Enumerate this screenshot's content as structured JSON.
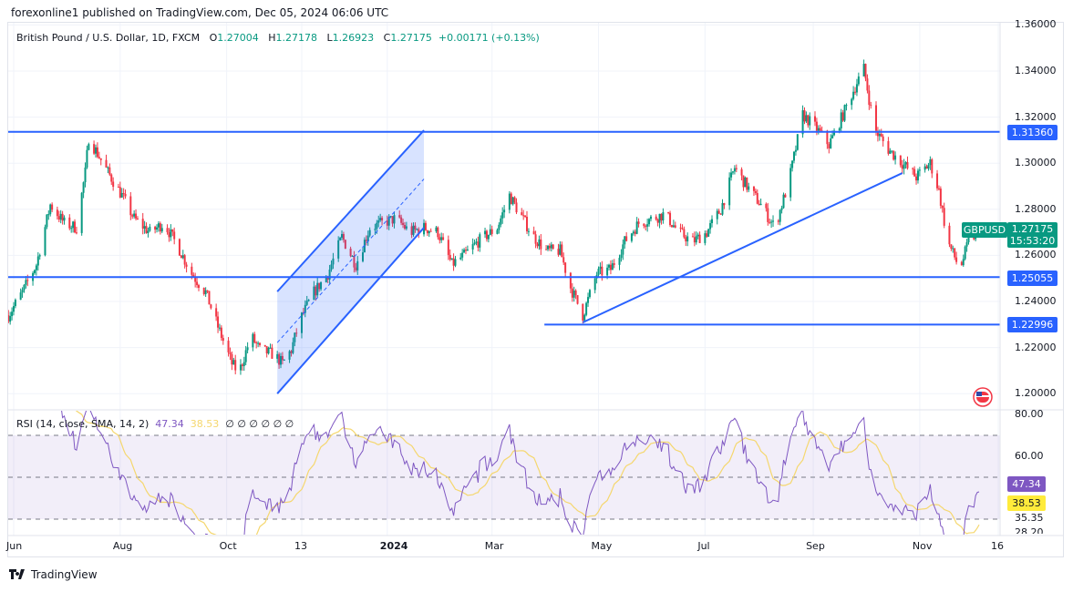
{
  "header": {
    "published": "forexonline1 published on TradingView.com, Dec 05, 2024 06:06 UTC",
    "symbol_desc": "British Pound / U.S. Dollar, 1D, FXCM",
    "open_label": "O",
    "open": "1.27004",
    "high_label": "H",
    "high": "1.27178",
    "low_label": "L",
    "low": "1.26923",
    "close_label": "C",
    "close": "1.27175",
    "change": "+0.00171 (+0.13%)"
  },
  "rsi_legend": {
    "title": "RSI (14, close, SMA, 14, 2)",
    "rsi": "47.34",
    "sma": "38.53",
    "empty_values": "∅  ∅  ∅  ∅  ∅  ∅"
  },
  "tags": {
    "symbol": "GBPUSD",
    "last_price": "1.27175",
    "countdown": "15:53:20",
    "level_top": "1.31360",
    "level_mid": "1.25055",
    "level_low": "1.22996",
    "rsi_value": "47.34",
    "rsi_sma": "38.53",
    "rsi_extra_low": "35.35",
    "rsi_cut": "28.20"
  },
  "footer": {
    "brand": "TradingView"
  },
  "icons": {
    "flag": "us-uk-flag-icon",
    "logo": "tradingview-logo-icon"
  },
  "colors": {
    "up": "#089981",
    "down": "#f23645",
    "drawing": "#2962ff",
    "rsi": "#7e57c2",
    "rsi_sma": "#f5d76e",
    "band": "#7e57c2"
  },
  "chart_data": [
    {
      "type": "candlestick",
      "title": "British Pound / U.S. Dollar, 1D, FXCM",
      "ylim": [
        1.195,
        1.362
      ],
      "y_ticks": [
        "1.36000",
        "1.34000",
        "1.32000",
        "1.30000",
        "1.28000",
        "1.26000",
        "1.24000",
        "1.22000",
        "1.20000"
      ],
      "x_ticks": [
        {
          "label": "Jun",
          "date": "2023-06-01"
        },
        {
          "label": "Aug",
          "date": "2023-08-01"
        },
        {
          "label": "Oct",
          "date": "2023-10-01"
        },
        {
          "label": "13",
          "date": "2023-11-13"
        },
        {
          "label": "2024",
          "date": "2024-01-01"
        },
        {
          "label": "Mar",
          "date": "2024-03-01"
        },
        {
          "label": "May",
          "date": "2024-05-01"
        },
        {
          "label": "Jul",
          "date": "2024-07-01"
        },
        {
          "label": "Sep",
          "date": "2024-09-01"
        },
        {
          "label": "Nov",
          "date": "2024-11-01"
        },
        {
          "label": "16",
          "date": "2024-12-16"
        }
      ],
      "approx_closes": [
        [
          "2023-05-29",
          1.234
        ],
        [
          "2023-06-06",
          1.244
        ],
        [
          "2023-06-14",
          1.256
        ],
        [
          "2023-06-22",
          1.282
        ],
        [
          "2023-06-30",
          1.274
        ],
        [
          "2023-07-07",
          1.272
        ],
        [
          "2023-07-12",
          1.296
        ],
        [
          "2023-07-14",
          1.311
        ],
        [
          "2023-07-25",
          1.296
        ],
        [
          "2023-08-02",
          1.286
        ],
        [
          "2023-08-09",
          1.276
        ],
        [
          "2023-08-18",
          1.27
        ],
        [
          "2023-08-26",
          1.274
        ],
        [
          "2023-09-03",
          1.264
        ],
        [
          "2023-09-11",
          1.252
        ],
        [
          "2023-09-19",
          1.244
        ],
        [
          "2023-09-26",
          1.229
        ],
        [
          "2023-10-04",
          1.213
        ],
        [
          "2023-10-08",
          1.209
        ],
        [
          "2023-10-15",
          1.225
        ],
        [
          "2023-10-20",
          1.219
        ],
        [
          "2023-10-28",
          1.217
        ],
        [
          "2023-11-02",
          1.213
        ],
        [
          "2023-11-07",
          1.219
        ],
        [
          "2023-11-12",
          1.232
        ],
        [
          "2023-11-20",
          1.244
        ],
        [
          "2023-11-28",
          1.252
        ],
        [
          "2023-12-06",
          1.268
        ],
        [
          "2023-12-14",
          1.256
        ],
        [
          "2023-12-22",
          1.272
        ],
        [
          "2023-12-29",
          1.274
        ],
        [
          "2024-01-06",
          1.276
        ],
        [
          "2024-01-14",
          1.27
        ],
        [
          "2024-01-22",
          1.272
        ],
        [
          "2024-01-30",
          1.27
        ],
        [
          "2024-02-07",
          1.256
        ],
        [
          "2024-02-14",
          1.26
        ],
        [
          "2024-02-22",
          1.266
        ],
        [
          "2024-03-04",
          1.272
        ],
        [
          "2024-03-11",
          1.286
        ],
        [
          "2024-03-17",
          1.278
        ],
        [
          "2024-03-25",
          1.268
        ],
        [
          "2024-04-01",
          1.262
        ],
        [
          "2024-04-09",
          1.262
        ],
        [
          "2024-04-15",
          1.246
        ],
        [
          "2024-04-22",
          1.234
        ],
        [
          "2024-04-30",
          1.252
        ],
        [
          "2024-05-08",
          1.254
        ],
        [
          "2024-05-16",
          1.266
        ],
        [
          "2024-05-24",
          1.274
        ],
        [
          "2024-06-01",
          1.276
        ],
        [
          "2024-06-08",
          1.278
        ],
        [
          "2024-06-16",
          1.27
        ],
        [
          "2024-06-24",
          1.266
        ],
        [
          "2024-07-02",
          1.27
        ],
        [
          "2024-07-10",
          1.28
        ],
        [
          "2024-07-18",
          1.298
        ],
        [
          "2024-07-25",
          1.29
        ],
        [
          "2024-08-02",
          1.282
        ],
        [
          "2024-08-10",
          1.272
        ],
        [
          "2024-08-18",
          1.292
        ],
        [
          "2024-08-26",
          1.321
        ],
        [
          "2024-09-03",
          1.315
        ],
        [
          "2024-09-10",
          1.308
        ],
        [
          "2024-09-18",
          1.321
        ],
        [
          "2024-09-26",
          1.335
        ],
        [
          "2024-09-30",
          1.341
        ],
        [
          "2024-10-06",
          1.315
        ],
        [
          "2024-10-14",
          1.306
        ],
        [
          "2024-10-22",
          1.3
        ],
        [
          "2024-10-30",
          1.294
        ],
        [
          "2024-11-07",
          1.3
        ],
        [
          "2024-11-12",
          1.288
        ],
        [
          "2024-11-17",
          1.266
        ],
        [
          "2024-11-24",
          1.254
        ],
        [
          "2024-11-29",
          1.266
        ],
        [
          "2024-12-04",
          1.27
        ],
        [
          "2024-12-05",
          1.27175
        ]
      ],
      "drawings": {
        "horizontal_lines": [
          {
            "price": 1.3136,
            "from": "2023-05-28"
          },
          {
            "price": 1.25055,
            "from": "2023-05-28"
          },
          {
            "price": 1.22996,
            "from": "2024-03-31"
          }
        ],
        "channel": {
          "start": "2023-10-30",
          "end": "2024-01-22",
          "lower": [
            1.2,
            1.272
          ],
          "upper": [
            1.2443,
            1.3143
          ]
        },
        "trendline": {
          "from": [
            "2024-04-22",
            1.2309
          ],
          "to": [
            "2024-10-22",
            1.2957
          ]
        }
      }
    },
    {
      "type": "line",
      "title": "RSI (14, close, SMA, 14, 2)",
      "ylim": [
        27,
        82
      ],
      "y_ticks": [
        "80.00",
        "60.00"
      ],
      "bands": [
        70,
        50,
        30
      ],
      "series": [
        {
          "name": "RSI",
          "last": 47.34
        },
        {
          "name": "SMA",
          "last": 38.53
        }
      ]
    }
  ]
}
